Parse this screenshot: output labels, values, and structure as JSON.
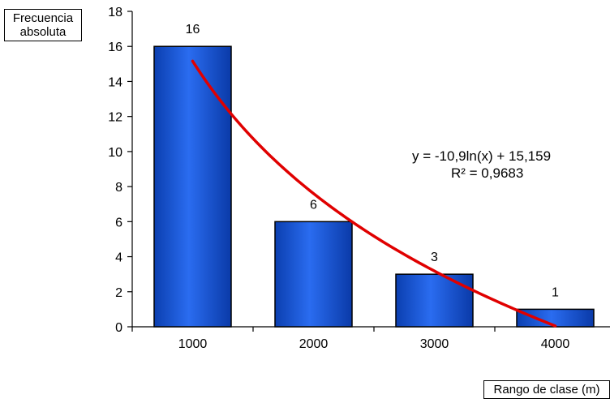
{
  "chart_data": {
    "type": "bar",
    "categories": [
      "1000",
      "2000",
      "3000",
      "4000"
    ],
    "values": [
      16,
      6,
      3,
      1
    ],
    "data_labels": [
      "16",
      "6",
      "3",
      "1"
    ],
    "ylabel": "Frecuencia absoluta",
    "xlabel": "Rango de clase (m)",
    "ylim": [
      0,
      18
    ],
    "yticks": [
      0,
      2,
      4,
      6,
      8,
      10,
      12,
      14,
      16,
      18
    ],
    "grid": false,
    "bar_color": "#1a56d9",
    "trendline": {
      "type": "logarithmic",
      "a": -10.9,
      "b": 15.159,
      "color": "#e00000",
      "equation": "y = -10,9ln(x) + 15,159",
      "r2": "R² = 0,9683"
    }
  }
}
